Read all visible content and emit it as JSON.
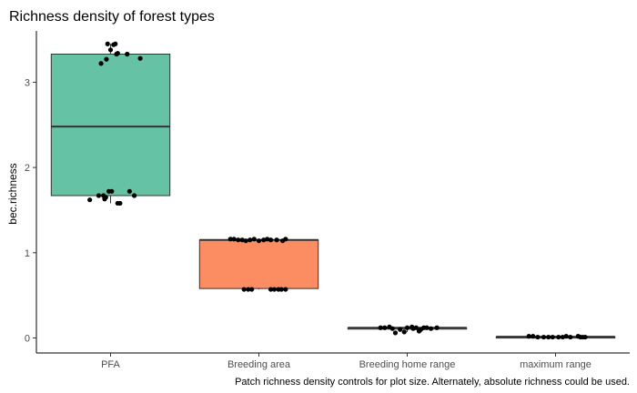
{
  "chart_data": {
    "type": "boxplot",
    "title": "Richness density of forest types",
    "xlabel": "",
    "ylabel": "bec.richness",
    "caption": "Patch richness density controls for plot size. Alternately, absolute richness could be used.",
    "categories": [
      "PFA",
      "Breeding area",
      "Breeding home range",
      "maximum range"
    ],
    "yticks": [
      0,
      1,
      2,
      3
    ],
    "ylim": [
      -0.15,
      3.6
    ],
    "grid": false,
    "legend": "none",
    "boxes": [
      {
        "category": "PFA",
        "q1": 1.67,
        "median": 2.48,
        "q3": 3.33,
        "whisker_low": 1.58,
        "whisker_high": 3.45,
        "fill": "#66c2a5",
        "points": [
          [
            -0.35,
            1.62
          ],
          [
            -0.2,
            1.67
          ],
          [
            -0.12,
            1.67
          ],
          [
            -0.1,
            1.63
          ],
          [
            -0.08,
            1.65
          ],
          [
            -0.03,
            1.72
          ],
          [
            0.02,
            1.72
          ],
          [
            0.12,
            1.58
          ],
          [
            0.16,
            1.58
          ],
          [
            0.32,
            1.72
          ],
          [
            0.4,
            1.67
          ],
          [
            -0.16,
            3.22
          ],
          [
            -0.07,
            3.27
          ],
          [
            0.0,
            3.38
          ],
          [
            -0.05,
            3.45
          ],
          [
            0.05,
            3.44
          ],
          [
            0.08,
            3.45
          ],
          [
            0.1,
            3.33
          ],
          [
            0.12,
            3.34
          ],
          [
            0.28,
            3.33
          ],
          [
            0.5,
            3.28
          ]
        ]
      },
      {
        "category": "Breeding area",
        "q1": 0.58,
        "median": 1.15,
        "q3": 1.15,
        "whisker_low": 0.57,
        "whisker_high": 1.16,
        "fill": "#fc8d62",
        "points": [
          [
            -0.48,
            1.16
          ],
          [
            -0.42,
            1.16
          ],
          [
            -0.35,
            1.15
          ],
          [
            -0.28,
            1.15
          ],
          [
            -0.22,
            1.14
          ],
          [
            -0.15,
            1.15
          ],
          [
            -0.08,
            1.16
          ],
          [
            0.0,
            1.14
          ],
          [
            0.08,
            1.15
          ],
          [
            0.14,
            1.16
          ],
          [
            0.2,
            1.15
          ],
          [
            0.3,
            1.15
          ],
          [
            0.4,
            1.14
          ],
          [
            0.45,
            1.16
          ],
          [
            -0.25,
            0.57
          ],
          [
            -0.18,
            0.57
          ],
          [
            -0.12,
            0.57
          ],
          [
            0.2,
            0.57
          ],
          [
            0.26,
            0.57
          ],
          [
            0.33,
            0.57
          ],
          [
            0.38,
            0.57
          ],
          [
            0.45,
            0.57
          ]
        ]
      },
      {
        "category": "Breeding home range",
        "q1": 0.11,
        "median": 0.12,
        "q3": 0.12,
        "whisker_low": 0.07,
        "whisker_high": 0.14,
        "fill": "#8da0cb",
        "points": [
          [
            -0.45,
            0.12
          ],
          [
            -0.38,
            0.12
          ],
          [
            -0.3,
            0.13
          ],
          [
            -0.25,
            0.11
          ],
          [
            -0.2,
            0.06
          ],
          [
            -0.12,
            0.1
          ],
          [
            -0.05,
            0.07
          ],
          [
            0.0,
            0.12
          ],
          [
            0.08,
            0.13
          ],
          [
            0.15,
            0.12
          ],
          [
            0.2,
            0.08
          ],
          [
            0.23,
            0.1
          ],
          [
            0.28,
            0.12
          ],
          [
            0.33,
            0.12
          ],
          [
            0.4,
            0.11
          ],
          [
            0.5,
            0.12
          ],
          [
            0.1,
            0.11
          ]
        ]
      },
      {
        "category": "maximum range",
        "q1": 0.01,
        "median": 0.015,
        "q3": 0.015,
        "whisker_low": 0.005,
        "whisker_high": 0.025,
        "fill": "#e78ac3",
        "points": [
          [
            -0.45,
            0.02
          ],
          [
            -0.38,
            0.02
          ],
          [
            -0.3,
            0.01
          ],
          [
            -0.2,
            0.01
          ],
          [
            -0.12,
            0.01
          ],
          [
            -0.05,
            0.01
          ],
          [
            0.05,
            0.01
          ],
          [
            0.12,
            0.01
          ],
          [
            0.18,
            0.02
          ],
          [
            0.25,
            0.01
          ],
          [
            0.38,
            0.02
          ],
          [
            0.42,
            0.01
          ],
          [
            0.46,
            0.01
          ],
          [
            0.5,
            0.01
          ]
        ]
      }
    ]
  }
}
